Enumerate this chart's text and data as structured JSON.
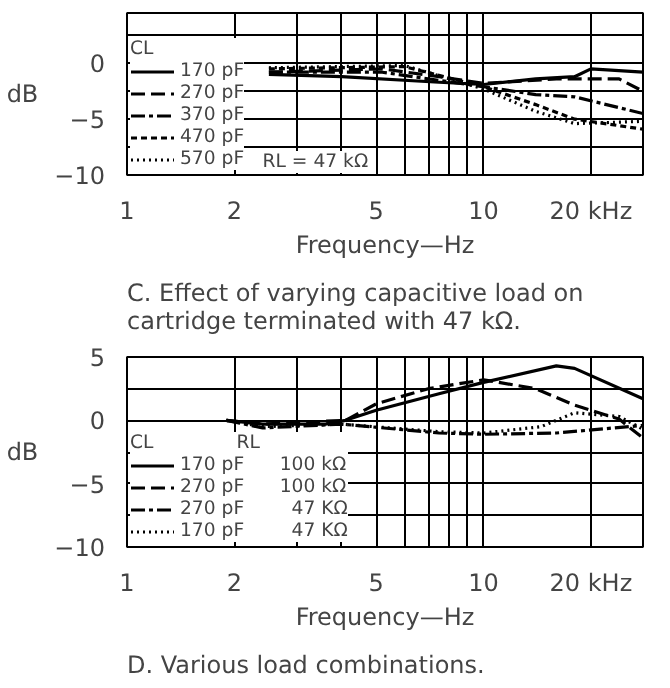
{
  "chart_data": [
    {
      "type": "line",
      "title": "C. Effect of varying capacitive load on cartridge terminated with 47 kΩ.",
      "xlabel": "Frequency—Hz",
      "ylabel": "dB",
      "legend_title": "CL",
      "log": "x",
      "grid": true,
      "legend": "bottom left",
      "xlim": [
        1,
        28
      ],
      "xticks": [
        1,
        2,
        5,
        10,
        {
          "value": 20,
          "label": "20 kHz"
        }
      ],
      "ylim": [
        -10,
        4.5
      ],
      "yticks": [
        0,
        -5,
        -10
      ],
      "annotations": [
        "RL = 47 kΩ"
      ],
      "series": [
        {
          "name": "170 pF",
          "color": "#000000",
          "line_style": "solid",
          "x": [
            2.5,
            4,
            7.5,
            10,
            14,
            18,
            20,
            28
          ],
          "values": [
            -1.0,
            -1.2,
            -1.7,
            -1.9,
            -1.4,
            -1.2,
            -0.5,
            -0.8
          ]
        },
        {
          "name": "270 pF",
          "color": "#000000",
          "line_style": "dashed",
          "x": [
            2.5,
            5.2,
            7.5,
            10,
            16,
            20,
            24,
            28
          ],
          "values": [
            -0.8,
            -0.5,
            -1.2,
            -1.8,
            -1.4,
            -1.4,
            -1.4,
            -2.5
          ]
        },
        {
          "name": "370 pF",
          "color": "#000000",
          "line_style": "dashdot",
          "x": [
            2.5,
            5.2,
            10,
            14,
            18,
            28
          ],
          "values": [
            -0.8,
            -0.8,
            -2.1,
            -2.8,
            -3.0,
            -4.5
          ]
        },
        {
          "name": "470 pF",
          "color": "#000000",
          "line_style": "shortdash",
          "x": [
            2.5,
            6,
            10,
            14,
            18,
            28
          ],
          "values": [
            -0.5,
            -0.3,
            -2.1,
            -3.7,
            -5.0,
            -5.9
          ]
        },
        {
          "name": "570 pF",
          "color": "#000000",
          "line_style": "dotted",
          "x": [
            2.5,
            6,
            10,
            14,
            18,
            28
          ],
          "values": [
            -0.4,
            -0.2,
            -2.3,
            -4.3,
            -5.4,
            -5.2
          ]
        }
      ]
    },
    {
      "type": "line",
      "title": "D. Various load combinations.",
      "xlabel": "Frequency—Hz",
      "ylabel": "dB",
      "legend_title": "CL              RL",
      "log": "x",
      "grid": true,
      "legend": "bottom left",
      "xlim": [
        1,
        28
      ],
      "xticks": [
        1,
        2,
        5,
        10,
        {
          "value": 20,
          "label": "20 kHz"
        }
      ],
      "ylim": [
        -10,
        5
      ],
      "yticks": [
        5,
        0,
        -5,
        -10
      ],
      "series": [
        {
          "name": "170 pF      100 kΩ",
          "color": "#000000",
          "line_style": "solid",
          "x": [
            1.9,
            2.4,
            3.6,
            4.1,
            5,
            7.5,
            10,
            16,
            18,
            28
          ],
          "values": [
            0,
            -0.3,
            -0.3,
            0,
            0.8,
            2.1,
            3.0,
            4.3,
            4.1,
            1.7
          ]
        },
        {
          "name": "270 pF      100 kΩ",
          "color": "#000000",
          "line_style": "dashed",
          "x": [
            1.9,
            2.4,
            4.1,
            5,
            7,
            10,
            14,
            18,
            24,
            28
          ],
          "values": [
            0,
            -0.3,
            0,
            1.3,
            2.5,
            3.2,
            2.5,
            1.2,
            0.1,
            -1.4
          ]
        },
        {
          "name": "270 pF        47 KΩ",
          "color": "#000000",
          "line_style": "dashdot",
          "x": [
            1.9,
            2.4,
            4,
            7.5,
            10,
            16,
            28
          ],
          "values": [
            0,
            -0.6,
            -0.3,
            -1.0,
            -1.1,
            -1.0,
            -0.4
          ]
        },
        {
          "name": "170 pF        47 KΩ",
          "color": "#000000",
          "line_style": "dotted",
          "x": [
            1.9,
            2.4,
            4,
            7.5,
            10,
            14.5,
            18,
            24,
            28
          ],
          "values": [
            0,
            -0.5,
            -0.3,
            -0.9,
            -1.0,
            -0.5,
            0.6,
            0.3,
            -0.7
          ]
        }
      ]
    }
  ]
}
